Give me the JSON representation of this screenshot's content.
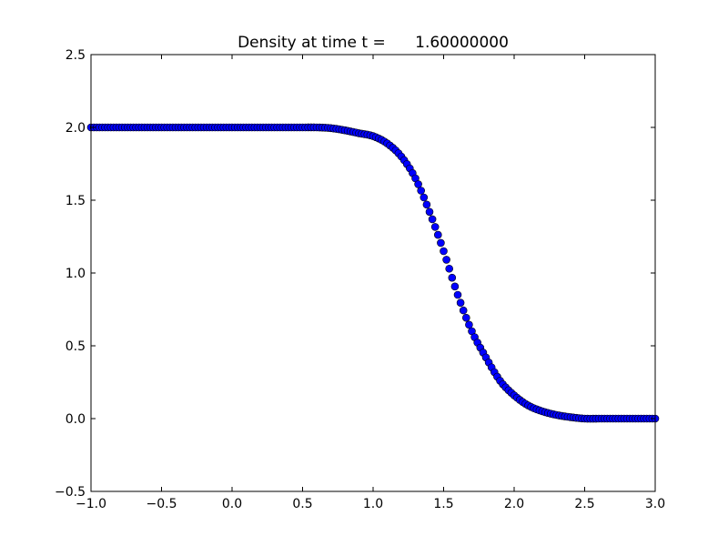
{
  "chart_data": {
    "type": "scatter",
    "title": "Density at time t =      1.60000000",
    "xlabel": "",
    "ylabel": "",
    "xlim": [
      -1.0,
      3.0
    ],
    "ylim": [
      -0.5,
      2.5
    ],
    "xticks": [
      -1.0,
      -0.5,
      0.0,
      0.5,
      1.0,
      1.5,
      2.0,
      2.5,
      3.0
    ],
    "xtick_labels": [
      "−1.0",
      "−0.5",
      "0.0",
      "0.5",
      "1.0",
      "1.5",
      "2.0",
      "2.5",
      "3.0"
    ],
    "yticks": [
      -0.5,
      0.0,
      0.5,
      1.0,
      1.5,
      2.0,
      2.5
    ],
    "ytick_labels": [
      "−0.5",
      "0.0",
      "0.5",
      "1.0",
      "1.5",
      "2.0",
      "2.5"
    ],
    "grid": false,
    "legend": "none",
    "marker_color": "#0000ff",
    "marker_edge_color": "#000000",
    "series": [
      {
        "x": [
          -1.0,
          -0.9,
          -0.8,
          -0.7,
          -0.6,
          -0.5,
          -0.4,
          -0.3,
          -0.2,
          -0.1,
          0.0,
          0.1,
          0.2,
          0.3,
          0.4,
          0.5,
          0.6,
          0.7,
          0.8,
          0.9,
          1.0,
          1.1,
          1.2,
          1.3,
          1.4,
          1.5,
          1.6,
          1.7,
          1.8,
          1.9,
          2.0,
          2.1,
          2.2,
          2.3,
          2.4,
          2.5,
          2.6,
          2.7,
          2.8,
          2.9,
          3.0
        ],
        "values": [
          2.0,
          2.0,
          2.0,
          2.0,
          2.0,
          2.0,
          2.0,
          2.0,
          2.0,
          2.0,
          2.0,
          2.0,
          2.0,
          2.0,
          2.0,
          2.0,
          2.0,
          1.995,
          1.98,
          1.96,
          1.94,
          1.89,
          1.8,
          1.65,
          1.42,
          1.15,
          0.85,
          0.6,
          0.42,
          0.26,
          0.16,
          0.09,
          0.05,
          0.025,
          0.01,
          0.0,
          0.0,
          0.0,
          0.0,
          0.0,
          0.0
        ]
      }
    ]
  }
}
